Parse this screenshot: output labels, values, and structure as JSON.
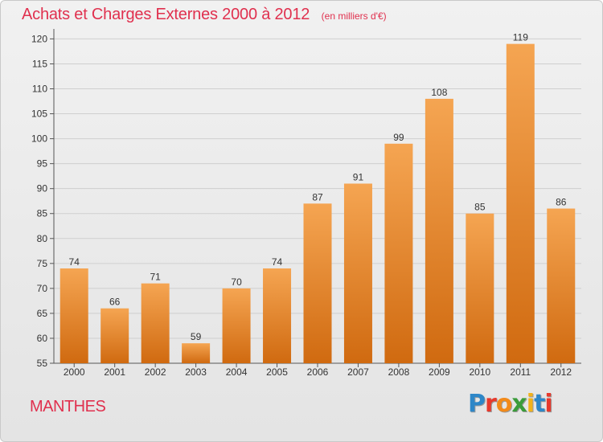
{
  "title": "Achats et Charges Externes 2000 à 2012",
  "unit": "(en milliers d'€)",
  "commune": "MANTHES",
  "logo": {
    "text": "Proxiti",
    "letters": [
      {
        "char": "P",
        "color": "#2e87c8"
      },
      {
        "char": "r",
        "color": "#e8392c"
      },
      {
        "char": "o",
        "color": "#f28a1a"
      },
      {
        "char": "x",
        "color": "#3a9c3a"
      },
      {
        "char": "i",
        "color": "#f2b21a"
      },
      {
        "char": "t",
        "color": "#2e87c8"
      },
      {
        "char": "i",
        "color": "#e8392c"
      }
    ]
  },
  "colors": {
    "accent": "#e0304e",
    "bar_top": "#f5a552",
    "bar_bottom": "#d06a10",
    "grid": "#cfcfcf",
    "axis": "#555555",
    "label": "#333333"
  },
  "chart_data": {
    "type": "bar",
    "title": "Achats et Charges Externes 2000 à 2012",
    "subtitle": "(en milliers d'€)",
    "xlabel": "",
    "ylabel": "",
    "categories": [
      "2000",
      "2001",
      "2002",
      "2003",
      "2004",
      "2005",
      "2006",
      "2007",
      "2008",
      "2009",
      "2010",
      "2011",
      "2012"
    ],
    "values": [
      74,
      66,
      71,
      59,
      70,
      74,
      87,
      91,
      99,
      108,
      85,
      119,
      86
    ],
    "ylim": [
      55,
      122
    ],
    "yticks": [
      55,
      60,
      65,
      70,
      75,
      80,
      85,
      90,
      95,
      100,
      105,
      110,
      115,
      120
    ],
    "grid": true,
    "legend": "none"
  }
}
